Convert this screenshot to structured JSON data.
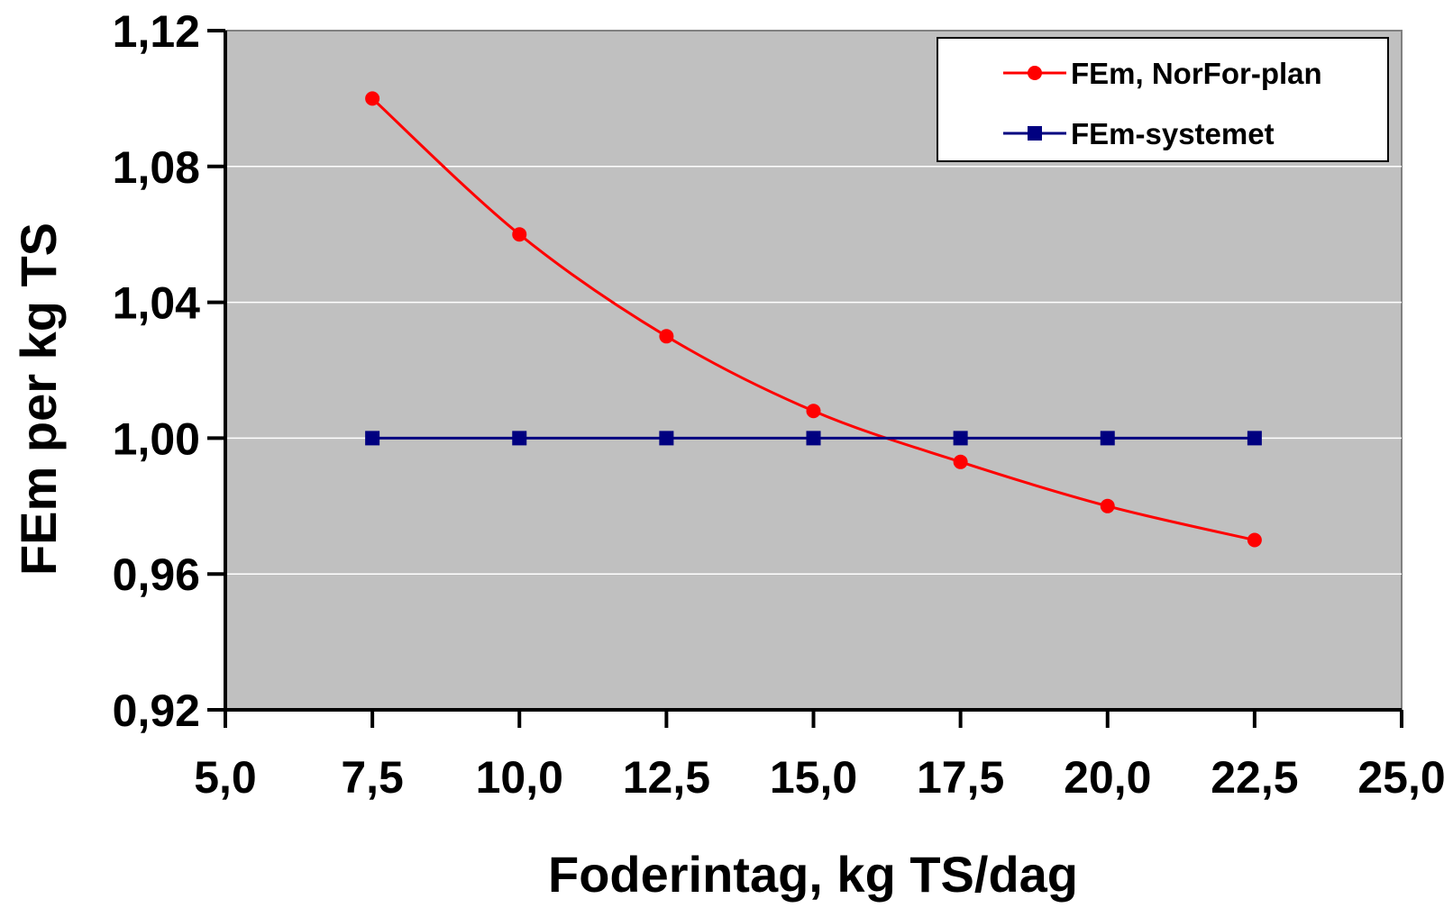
{
  "chart_data": {
    "type": "line",
    "title": "",
    "xlabel": "Foderintag, kg TS/dag",
    "ylabel": "FEm per kg TS",
    "xlim": [
      5.0,
      25.0
    ],
    "ylim": [
      0.92,
      1.12
    ],
    "x_ticks": [
      "5,0",
      "7,5",
      "10,0",
      "12,5",
      "15,0",
      "17,5",
      "20,0",
      "22,5",
      "25,0"
    ],
    "y_ticks": [
      "0,92",
      "0,96",
      "1,00",
      "1,04",
      "1,08",
      "1,12"
    ],
    "x_tick_values": [
      5.0,
      7.5,
      10.0,
      12.5,
      15.0,
      17.5,
      20.0,
      22.5,
      25.0
    ],
    "y_tick_values": [
      0.92,
      0.96,
      1.0,
      1.04,
      1.08,
      1.12
    ],
    "x": [
      7.5,
      10.0,
      12.5,
      15.0,
      17.5,
      20.0,
      22.5
    ],
    "series": [
      {
        "name": "FEm, NorFor-plan",
        "values": [
          1.1,
          1.06,
          1.03,
          1.008,
          0.993,
          0.98,
          0.97
        ],
        "color": "#ff0000",
        "marker": "circle",
        "smooth": true
      },
      {
        "name": "FEm-systemet",
        "values": [
          1.0,
          1.0,
          1.0,
          1.0,
          1.0,
          1.0,
          1.0
        ],
        "color": "#000080",
        "marker": "square",
        "smooth": false
      }
    ],
    "grid": "horizontal",
    "legend": "top-right",
    "plot_background": "#c0c0c0"
  }
}
